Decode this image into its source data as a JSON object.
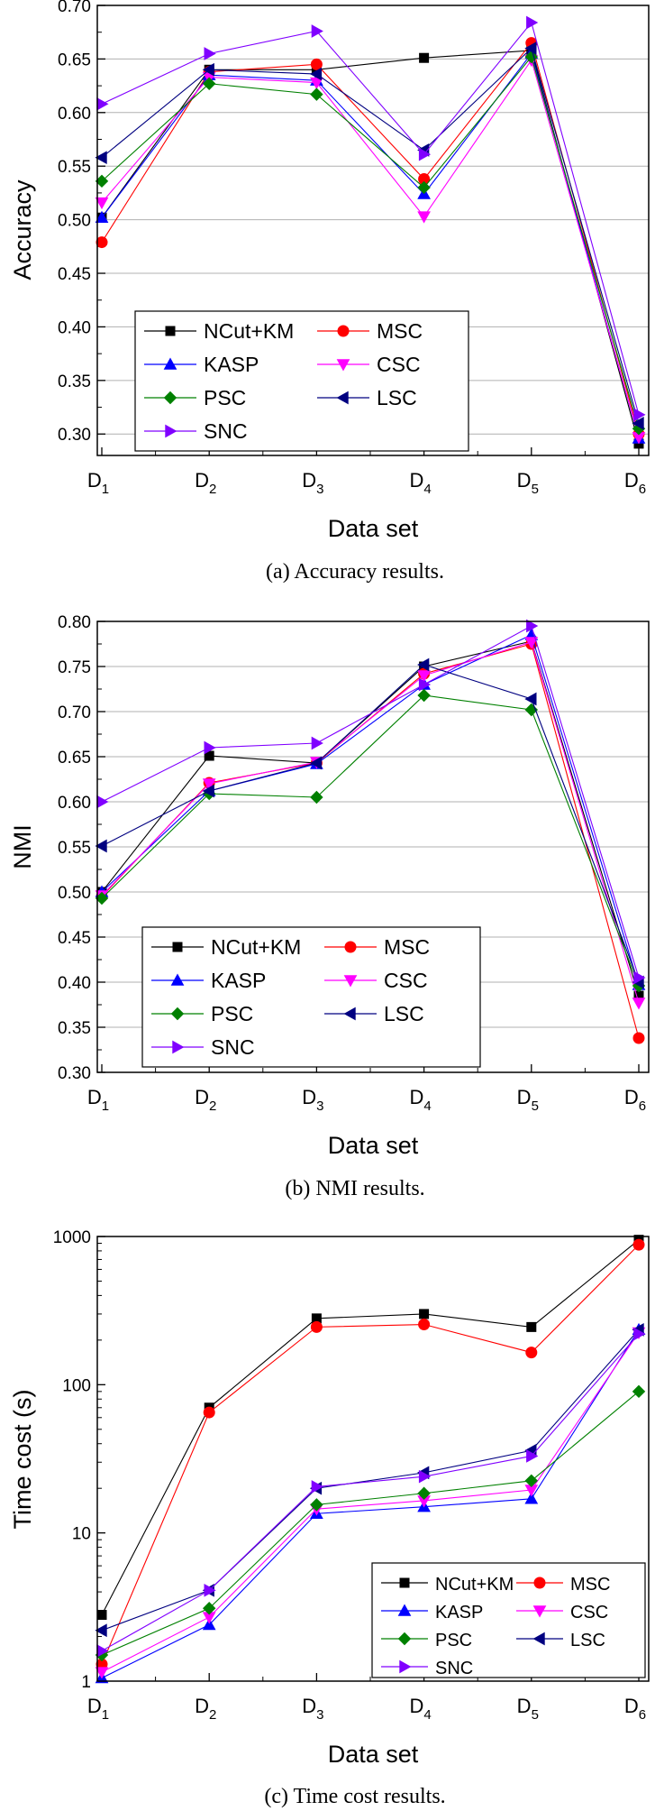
{
  "colors": {
    "NCut+KM": "#000000",
    "MSC": "#ff0000",
    "KASP": "#0000ff",
    "CSC": "#ff00ff",
    "PSC": "#008000",
    "LSC": "#000080",
    "SNC": "#8000ff"
  },
  "markers": {
    "NCut+KM": "square",
    "MSC": "circle",
    "KASP": "triangle-up",
    "CSC": "triangle-down",
    "PSC": "diamond",
    "LSC": "triangle-left",
    "SNC": "triangle-right"
  },
  "chart_data": [
    {
      "type": "line",
      "caption": "(a)  Accuracy results.",
      "xlabel": "Data set",
      "ylabel": "Accuracy",
      "categories": [
        {
          "base": "D",
          "sub": "1"
        },
        {
          "base": "D",
          "sub": "2"
        },
        {
          "base": "D",
          "sub": "3"
        },
        {
          "base": "D",
          "sub": "4"
        },
        {
          "base": "D",
          "sub": "5"
        },
        {
          "base": "D",
          "sub": "6"
        }
      ],
      "ylim": [
        0.28,
        0.7
      ],
      "yscale": "linear",
      "yticks": [
        "0.30",
        "0.35",
        "0.40",
        "0.45",
        "0.50",
        "0.55",
        "0.60",
        "0.65",
        "0.70"
      ],
      "grid": true,
      "legend_position": "bottom-left",
      "series": [
        {
          "name": "NCut+KM",
          "values": [
            0.502,
            0.64,
            0.64,
            0.651,
            0.658,
            0.291
          ]
        },
        {
          "name": "MSC",
          "values": [
            0.479,
            0.638,
            0.645,
            0.538,
            0.665,
            0.3
          ]
        },
        {
          "name": "KASP",
          "values": [
            0.502,
            0.635,
            0.63,
            0.524,
            0.655,
            0.296
          ]
        },
        {
          "name": "CSC",
          "values": [
            0.516,
            0.633,
            0.628,
            0.503,
            0.649,
            0.297
          ]
        },
        {
          "name": "PSC",
          "values": [
            0.536,
            0.627,
            0.617,
            0.53,
            0.652,
            0.305
          ]
        },
        {
          "name": "LSC",
          "values": [
            0.558,
            0.64,
            0.636,
            0.565,
            0.66,
            0.31
          ]
        },
        {
          "name": "SNC",
          "values": [
            0.608,
            0.655,
            0.676,
            0.561,
            0.684,
            0.318
          ]
        }
      ]
    },
    {
      "type": "line",
      "caption": "(b)  NMI results.",
      "xlabel": "Data set",
      "ylabel": "NMI",
      "categories": [
        {
          "base": "D",
          "sub": "1"
        },
        {
          "base": "D",
          "sub": "2"
        },
        {
          "base": "D",
          "sub": "3"
        },
        {
          "base": "D",
          "sub": "4"
        },
        {
          "base": "D",
          "sub": "5"
        },
        {
          "base": "D",
          "sub": "6"
        }
      ],
      "ylim": [
        0.3,
        0.8
      ],
      "yscale": "linear",
      "yticks": [
        "0.30",
        "0.35",
        "0.40",
        "0.45",
        "0.50",
        "0.55",
        "0.60",
        "0.65",
        "0.70",
        "0.75",
        "0.80"
      ],
      "grid": true,
      "legend_position": "bottom-left",
      "series": [
        {
          "name": "NCut+KM",
          "values": [
            0.5,
            0.651,
            0.643,
            0.75,
            0.778,
            0.385
          ]
        },
        {
          "name": "MSC",
          "values": [
            0.495,
            0.621,
            0.643,
            0.742,
            0.775,
            0.338
          ]
        },
        {
          "name": "KASP",
          "values": [
            0.5,
            0.612,
            0.642,
            0.73,
            0.785,
            0.397
          ]
        },
        {
          "name": "CSC",
          "values": [
            0.496,
            0.62,
            0.644,
            0.74,
            0.777,
            0.377
          ]
        },
        {
          "name": "PSC",
          "values": [
            0.493,
            0.609,
            0.605,
            0.718,
            0.702,
            0.396
          ]
        },
        {
          "name": "LSC",
          "values": [
            0.551,
            0.612,
            0.643,
            0.752,
            0.714,
            0.4
          ]
        },
        {
          "name": "SNC",
          "values": [
            0.6,
            0.66,
            0.665,
            0.73,
            0.795,
            0.405
          ]
        }
      ]
    },
    {
      "type": "line",
      "caption": "(c)  Time cost results.",
      "xlabel": "Data set",
      "ylabel": "Time cost (s)",
      "categories": [
        {
          "base": "D",
          "sub": "1"
        },
        {
          "base": "D",
          "sub": "2"
        },
        {
          "base": "D",
          "sub": "3"
        },
        {
          "base": "D",
          "sub": "4"
        },
        {
          "base": "D",
          "sub": "5"
        },
        {
          "base": "D",
          "sub": "6"
        }
      ],
      "ylim": [
        1,
        1000
      ],
      "yscale": "log",
      "yticks": [
        "1",
        "10",
        "100",
        "1000"
      ],
      "grid": false,
      "legend_position": "bottom-right",
      "series": [
        {
          "name": "NCut+KM",
          "values": [
            2.8,
            70,
            280,
            300,
            245,
            950
          ]
        },
        {
          "name": "MSC",
          "values": [
            1.3,
            65,
            245,
            255,
            165,
            880
          ]
        },
        {
          "name": "KASP",
          "values": [
            1.05,
            2.4,
            13.5,
            15,
            17,
            235
          ]
        },
        {
          "name": "CSC",
          "values": [
            1.15,
            2.7,
            14.5,
            16.5,
            19.5,
            225
          ]
        },
        {
          "name": "PSC",
          "values": [
            1.5,
            3.1,
            15.5,
            18.5,
            22.5,
            90
          ]
        },
        {
          "name": "LSC",
          "values": [
            2.2,
            4.1,
            20,
            25.5,
            36,
            235
          ]
        },
        {
          "name": "SNC",
          "values": [
            1.6,
            4.1,
            20.5,
            24,
            33,
            220
          ]
        }
      ]
    }
  ]
}
